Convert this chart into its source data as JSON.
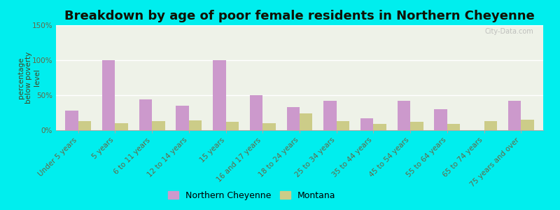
{
  "title": "Breakdown by age of poor female residents in Northern Cheyenne",
  "ylabel": "percentage\nbelow poverty\nlevel",
  "categories": [
    "Under 5 years",
    "5 years",
    "6 to 11 years",
    "12 to 14 years",
    "15 years",
    "16 and 17 years",
    "18 to 24 years",
    "25 to 34 years",
    "35 to 44 years",
    "45 to 54 years",
    "55 to 64 years",
    "65 to 74 years",
    "75 years and over"
  ],
  "northern_cheyenne": [
    28,
    100,
    44,
    35,
    100,
    50,
    33,
    42,
    17,
    42,
    30,
    0,
    42
  ],
  "montana": [
    13,
    10,
    13,
    14,
    12,
    10,
    24,
    13,
    9,
    12,
    9,
    13,
    15
  ],
  "nc_color": "#cc99cc",
  "mt_color": "#cccc88",
  "background_outer": "#00eeee",
  "background_plot": "#eef2e8",
  "ylim": [
    0,
    150
  ],
  "yticks": [
    0,
    50,
    100,
    150
  ],
  "bar_width": 0.35,
  "title_fontsize": 13,
  "tick_fontsize": 7.5,
  "ylabel_fontsize": 7.5,
  "legend_labels": [
    "Northern Cheyenne",
    "Montana"
  ],
  "watermark": "City-Data.com"
}
